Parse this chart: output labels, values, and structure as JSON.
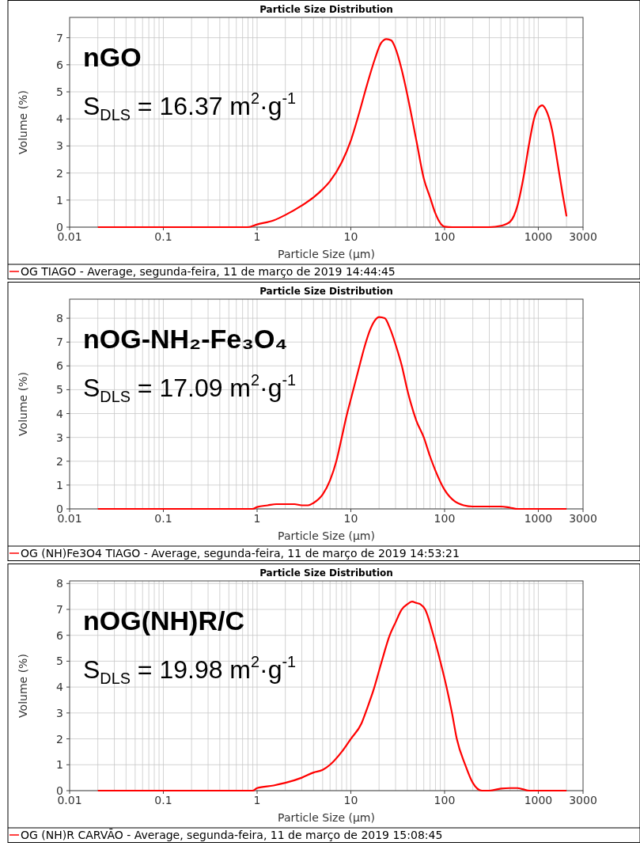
{
  "chart_data": [
    {
      "type": "line",
      "title": "Particle Size Distribution",
      "xlabel": "Particle Size (µm)",
      "ylabel": "Volume (%)",
      "log": "x",
      "grid": true,
      "legend": "bottom",
      "marker": "none",
      "xlim": [
        0.01,
        3000
      ],
      "xticks": [
        0.01,
        0.1,
        1,
        10,
        100,
        1000,
        3000
      ],
      "ylim": [
        0,
        7.75
      ],
      "yticks": [
        0,
        1,
        2,
        3,
        4,
        5,
        6,
        7
      ],
      "annotations": [
        "nGO",
        "S$_{DLS}$ = 16.37 m$^{2}$·g$^{-1}$"
      ],
      "x": [
        0.02,
        0.8,
        1,
        1.5,
        2,
        3,
        4,
        5,
        6,
        8,
        10,
        12,
        15,
        18,
        21,
        24,
        27,
        30,
        35,
        40,
        50,
        60,
        70,
        80,
        90,
        100,
        120,
        300,
        400,
        500,
        600,
        700,
        800,
        900,
        1000,
        1100,
        1200,
        1400,
        1600,
        1800,
        2000
      ],
      "series": [
        {
          "name": "OG TIAGO - Average, segunda-feira, 11 de março de 2019 14:44:45",
          "color": "#ff0000",
          "values": [
            0,
            0,
            0.1,
            0.25,
            0.45,
            0.8,
            1.1,
            1.4,
            1.7,
            2.4,
            3.2,
            4.1,
            5.3,
            6.2,
            6.8,
            6.95,
            6.9,
            6.6,
            5.8,
            4.9,
            3.2,
            1.8,
            1.1,
            0.5,
            0.15,
            0.02,
            0,
            0,
            0.05,
            0.2,
            0.8,
            1.9,
            3.1,
            4.0,
            4.4,
            4.5,
            4.35,
            3.6,
            2.4,
            1.3,
            0.4
          ]
        }
      ]
    },
    {
      "type": "line",
      "title": "Particle Size Distribution",
      "xlabel": "Particle Size (µm)",
      "ylabel": "Volume (%)",
      "log": "x",
      "grid": true,
      "legend": "bottom",
      "marker": "none",
      "xlim": [
        0.01,
        3000
      ],
      "xticks": [
        0.01,
        0.1,
        1,
        10,
        100,
        1000,
        3000
      ],
      "ylim": [
        0,
        8.8
      ],
      "yticks": [
        0,
        1,
        2,
        3,
        4,
        5,
        6,
        7,
        8
      ],
      "annotations": [
        "nOG-NH₂-Fe₃O₄",
        "S$_{DLS}$ = 17.09 m$^{2}$·g$^{-1}$"
      ],
      "x": [
        0.02,
        0.9,
        1,
        1.3,
        1.6,
        2.5,
        3,
        3.5,
        4,
        5,
        6,
        7,
        8,
        9,
        10,
        12,
        14,
        16,
        18,
        20,
        23,
        26,
        30,
        35,
        40,
        50,
        60,
        70,
        80,
        100,
        130,
        160,
        200,
        400,
        500,
        600,
        2000
      ],
      "series": [
        {
          "name": "OG (NH)Fe3O4 TIAGO - Average, segunda-feira, 11 de março de 2019 14:53:21",
          "color": "#ff0000",
          "values": [
            0,
            0,
            0.08,
            0.15,
            0.2,
            0.2,
            0.15,
            0.15,
            0.25,
            0.6,
            1.2,
            2.0,
            3.0,
            3.9,
            4.6,
            5.8,
            6.8,
            7.5,
            7.9,
            8.05,
            8.0,
            7.6,
            6.9,
            6.0,
            5.0,
            3.7,
            3.0,
            2.2,
            1.6,
            0.8,
            0.3,
            0.15,
            0.1,
            0.1,
            0.05,
            0,
            0
          ]
        }
      ]
    },
    {
      "type": "line",
      "title": "Particle Size Distribution",
      "xlabel": "Particle Size (µm)",
      "ylabel": "Volume (%)",
      "log": "x",
      "grid": true,
      "legend": "bottom",
      "marker": "none",
      "xlim": [
        0.01,
        3000
      ],
      "xticks": [
        0.01,
        0.1,
        1,
        10,
        100,
        1000,
        3000
      ],
      "ylim": [
        0,
        8.1
      ],
      "yticks": [
        0,
        1,
        2,
        3,
        4,
        5,
        6,
        7,
        8
      ],
      "annotations": [
        "nOG(NH)R/C",
        "S$_{DLS}$ = 19.98 m$^{2}$·g$^{-1}$"
      ],
      "x": [
        0.02,
        0.9,
        1,
        1.5,
        2,
        3,
        4,
        5,
        6,
        8,
        10,
        13,
        15,
        17.5,
        21,
        26,
        30,
        35,
        40,
        45,
        50,
        55,
        62,
        76,
        90,
        105,
        120,
        135,
        166,
        200,
        250,
        300,
        400,
        500,
        600,
        800,
        2000
      ],
      "series": [
        {
          "name": "OG (NH)R CARVÃO - Average, segunda-feira, 11 de março de 2019 15:08:45",
          "color": "#ff0000",
          "values": [
            0,
            0,
            0.1,
            0.2,
            0.3,
            0.5,
            0.7,
            0.8,
            1.0,
            1.5,
            2.0,
            2.6,
            3.2,
            3.9,
            4.9,
            6.0,
            6.5,
            7.0,
            7.2,
            7.3,
            7.25,
            7.2,
            7.0,
            6.0,
            5.0,
            4.0,
            3.0,
            2.0,
            1.0,
            0.3,
            0,
            0,
            0.08,
            0.1,
            0.1,
            0,
            0
          ]
        }
      ]
    }
  ]
}
